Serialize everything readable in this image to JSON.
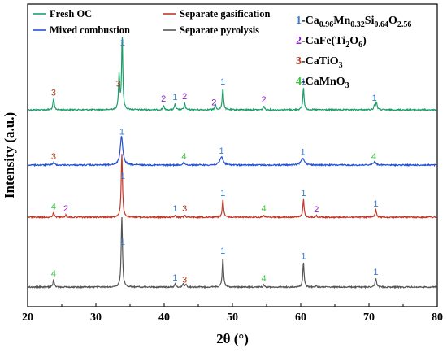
{
  "chart_data": {
    "type": "line",
    "xlabel": "2θ (°)",
    "ylabel": "Intensity (a.u.)",
    "xlim": [
      20,
      80
    ],
    "x_ticks": [
      "20",
      "30",
      "40",
      "50",
      "60",
      "70",
      "80"
    ],
    "legend": [
      {
        "label": "Fresh OC",
        "color": "#1a9e6a"
      },
      {
        "label": "Separate gasification",
        "color": "#c0392b"
      },
      {
        "label": "Mixed combustion",
        "color": "#2452d6"
      },
      {
        "label": "Separate pyrolysis",
        "color": "#555555"
      }
    ],
    "phases": [
      {
        "num": "1",
        "sep": "-",
        "parts": [
          "Ca",
          "0.96",
          "Mn",
          "0.32",
          "Si",
          "0.64",
          "O",
          "2.56"
        ],
        "color": "#3a7bd5"
      },
      {
        "num": "2",
        "sep": "-",
        "parts": [
          "CaFe(Ti",
          "2",
          "O",
          "6",
          ")",
          ""
        ],
        "color": "#8e24c8"
      },
      {
        "num": "3",
        "sep": "-",
        "parts": [
          "CaTiO",
          "3"
        ],
        "color": "#b03a1e"
      },
      {
        "num": "4",
        "sep": "-",
        "parts": [
          "CaMnO",
          "3"
        ],
        "color": "#3cc33c"
      }
    ],
    "series": [
      {
        "name": "Fresh OC",
        "color": "#1a9e6a",
        "offset": 3,
        "peak_scale": 1.05,
        "peaks": [
          [
            23.8,
            0.14,
            0.22
          ],
          [
            33.4,
            0.45,
            0.2
          ],
          [
            33.85,
            0.95,
            0.2
          ],
          [
            39.9,
            0.06,
            0.2
          ],
          [
            41.6,
            0.08,
            0.2
          ],
          [
            43.0,
            0.09,
            0.2
          ],
          [
            47.5,
            0.07,
            0.2
          ],
          [
            48.6,
            0.28,
            0.22
          ],
          [
            54.6,
            0.05,
            0.2
          ],
          [
            60.4,
            0.28,
            0.22
          ],
          [
            70.8,
            0.06,
            0.2
          ],
          [
            71.1,
            0.1,
            0.22
          ]
        ]
      },
      {
        "name": "Mixed combustion",
        "color": "#2452d6",
        "offset": 2,
        "peak_scale": 1.0,
        "peaks": [
          [
            23.8,
            0.03,
            0.4
          ],
          [
            33.75,
            0.38,
            0.45
          ],
          [
            42.9,
            0.03,
            0.4
          ],
          [
            48.4,
            0.11,
            0.55
          ],
          [
            60.3,
            0.09,
            0.6
          ],
          [
            70.8,
            0.04,
            0.5
          ]
        ]
      },
      {
        "name": "Separate gasification",
        "color": "#c0392b",
        "offset": 1,
        "peak_scale": 1.0,
        "peaks": [
          [
            23.8,
            0.06,
            0.22
          ],
          [
            25.6,
            0.03,
            0.2
          ],
          [
            33.8,
            0.85,
            0.22
          ],
          [
            41.6,
            0.03,
            0.2
          ],
          [
            43.0,
            0.03,
            0.2
          ],
          [
            48.6,
            0.24,
            0.22
          ],
          [
            54.6,
            0.03,
            0.2
          ],
          [
            60.4,
            0.24,
            0.22
          ],
          [
            62.3,
            0.02,
            0.2
          ],
          [
            71.0,
            0.1,
            0.22
          ]
        ]
      },
      {
        "name": "Separate pyrolysis",
        "color": "#555555",
        "offset": 0,
        "peak_scale": 1.0,
        "peaks": [
          [
            23.8,
            0.1,
            0.22
          ],
          [
            33.8,
            0.95,
            0.22
          ],
          [
            41.6,
            0.04,
            0.2
          ],
          [
            42.8,
            0.05,
            0.2
          ],
          [
            43.2,
            0.04,
            0.2
          ],
          [
            48.6,
            0.4,
            0.22
          ],
          [
            54.6,
            0.03,
            0.2
          ],
          [
            60.4,
            0.33,
            0.22
          ],
          [
            62.3,
            0.02,
            0.2
          ],
          [
            71.0,
            0.12,
            0.22
          ]
        ]
      }
    ],
    "peak_labels": [
      {
        "series": 0,
        "x": 23.8,
        "label": "3",
        "phase": 3
      },
      {
        "series": 0,
        "x": 33.3,
        "label": "3",
        "phase": 3
      },
      {
        "series": 0,
        "x": 33.9,
        "label": "1",
        "phase": 1
      },
      {
        "series": 0,
        "x": 39.9,
        "label": "2",
        "phase": 2
      },
      {
        "series": 0,
        "x": 41.6,
        "label": "1",
        "phase": 1
      },
      {
        "series": 0,
        "x": 43.0,
        "label": "2",
        "phase": 2
      },
      {
        "series": 0,
        "x": 47.3,
        "label": "2",
        "phase": 2
      },
      {
        "series": 0,
        "x": 48.6,
        "label": "1",
        "phase": 1
      },
      {
        "series": 0,
        "x": 54.6,
        "label": "2",
        "phase": 2
      },
      {
        "series": 0,
        "x": 60.4,
        "label": "1",
        "phase": 1
      },
      {
        "series": 0,
        "x": 70.8,
        "label": "1",
        "phase": 1
      },
      {
        "series": 1,
        "x": 23.8,
        "label": "3",
        "phase": 3
      },
      {
        "series": 1,
        "x": 33.8,
        "label": "1",
        "phase": 1
      },
      {
        "series": 1,
        "x": 42.9,
        "label": "4",
        "phase": 4
      },
      {
        "series": 1,
        "x": 48.4,
        "label": "1",
        "phase": 1
      },
      {
        "series": 1,
        "x": 60.3,
        "label": "1",
        "phase": 1
      },
      {
        "series": 1,
        "x": 70.7,
        "label": "4",
        "phase": 4
      },
      {
        "series": 2,
        "x": 23.8,
        "label": "4",
        "phase": 4
      },
      {
        "series": 2,
        "x": 25.6,
        "label": "2",
        "phase": 2
      },
      {
        "series": 2,
        "x": 33.9,
        "label": "1",
        "phase": 1
      },
      {
        "series": 2,
        "x": 41.6,
        "label": "1",
        "phase": 1
      },
      {
        "series": 2,
        "x": 43.0,
        "label": "3",
        "phase": 3
      },
      {
        "series": 2,
        "x": 48.6,
        "label": "1",
        "phase": 1
      },
      {
        "series": 2,
        "x": 54.6,
        "label": "4",
        "phase": 4
      },
      {
        "series": 2,
        "x": 60.4,
        "label": "1",
        "phase": 1
      },
      {
        "series": 2,
        "x": 62.3,
        "label": "2",
        "phase": 2
      },
      {
        "series": 2,
        "x": 71.0,
        "label": "1",
        "phase": 1
      },
      {
        "series": 3,
        "x": 23.8,
        "label": "4",
        "phase": 4
      },
      {
        "series": 3,
        "x": 33.9,
        "label": "1",
        "phase": 1
      },
      {
        "series": 3,
        "x": 41.6,
        "label": "1",
        "phase": 1
      },
      {
        "series": 3,
        "x": 43.0,
        "label": "3",
        "phase": 3
      },
      {
        "series": 3,
        "x": 48.6,
        "label": "1",
        "phase": 1
      },
      {
        "series": 3,
        "x": 54.6,
        "label": "4",
        "phase": 4
      },
      {
        "series": 3,
        "x": 60.4,
        "label": "1",
        "phase": 1
      },
      {
        "series": 3,
        "x": 71.0,
        "label": "1",
        "phase": 1
      }
    ]
  }
}
